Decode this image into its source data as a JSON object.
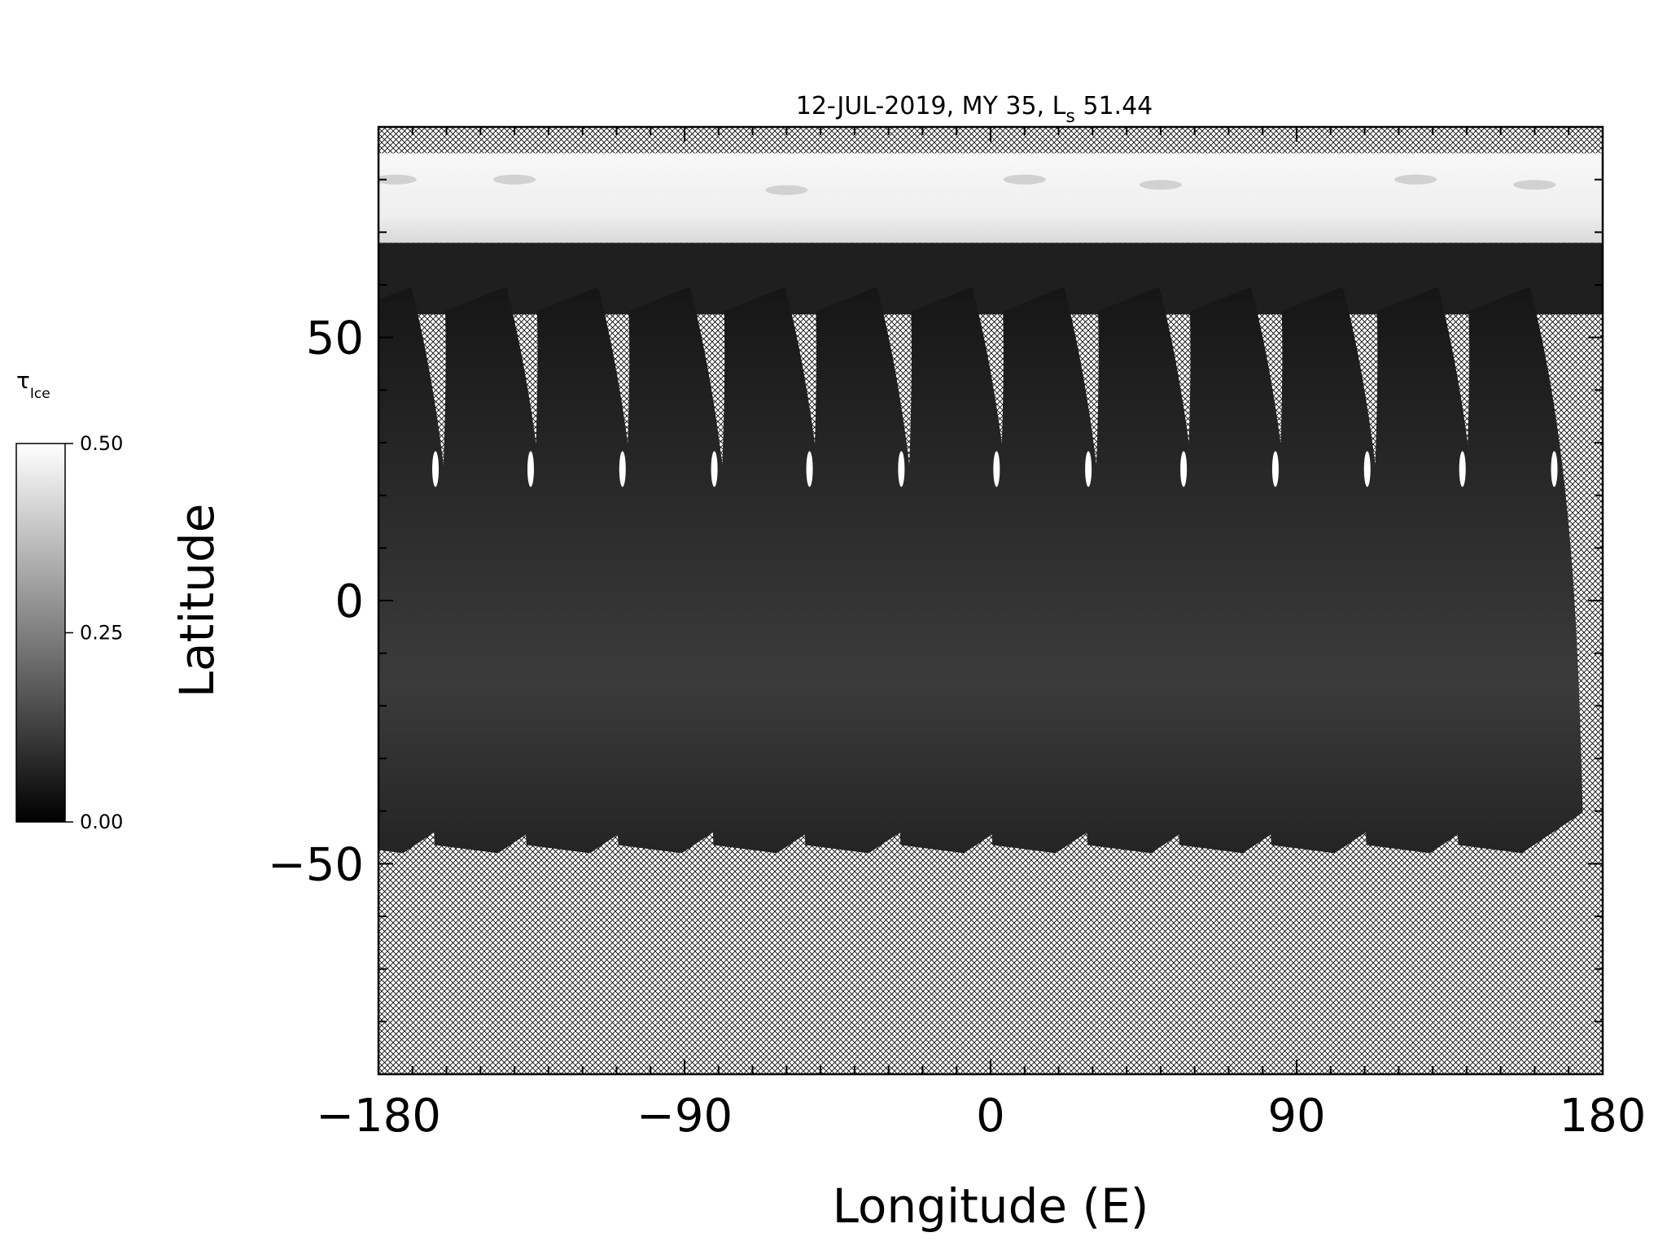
{
  "chart_data": {
    "type": "heatmap",
    "title": "12-JUL-2019, MY 35,  L",
    "title_subscript": "s",
    "title_suffix": " 51.44",
    "xlabel": "Longitude (E)",
    "ylabel": "Latitude",
    "xlim": [
      -180,
      180
    ],
    "ylim": [
      -90,
      90
    ],
    "x_ticks": [
      -180,
      -90,
      0,
      90,
      180
    ],
    "x_tick_labels": [
      "−180",
      "−90",
      "0",
      "90",
      "180"
    ],
    "y_ticks": [
      50,
      0,
      -50
    ],
    "y_tick_labels": [
      "50",
      "0",
      "−50"
    ],
    "colorbar": {
      "label": "τ",
      "label_subscript": "Ice",
      "range": [
        0.0,
        0.5
      ],
      "ticks": [
        0.5,
        0.25,
        0.0
      ],
      "tick_labels": [
        "0.50",
        "0.25",
        "0.00"
      ],
      "colormap": "grayscale (black = 0.00, white = 0.50)"
    },
    "no_data_pattern": "crosshatch",
    "polar_ice_band_lat": [
      68,
      85
    ],
    "swath_start_longitudes": [
      -180,
      -152,
      -125,
      -98,
      -70,
      -43,
      -15,
      12,
      40,
      67,
      94,
      122,
      149
    ],
    "swath_latitude_range": [
      -48,
      55
    ]
  },
  "colors": {
    "background": "#ffffff",
    "axis": "#000000",
    "swath_dark": "#1c1c1c",
    "swath_mid": "#3a3a3a",
    "ice_band": "#f4f4f4"
  }
}
